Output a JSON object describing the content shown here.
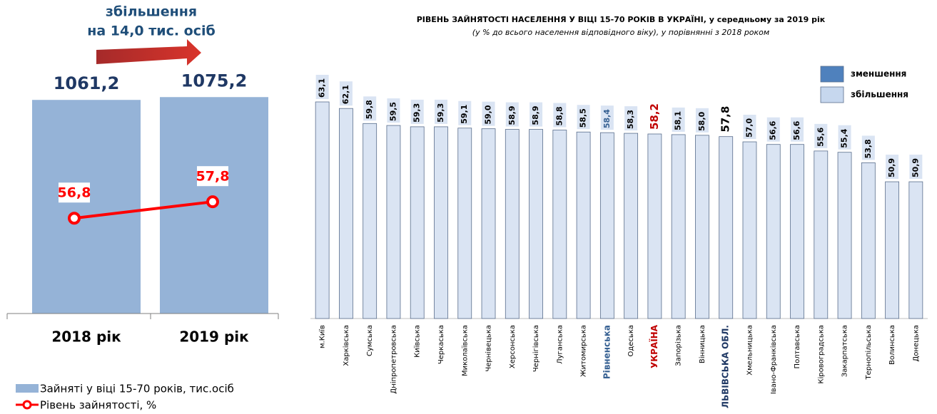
{
  "chart_data": [
    {
      "type": "bar_line",
      "annotation": [
        "збільшення",
        "на 14,0 тис. осіб"
      ],
      "categories": [
        "2018 рік",
        "2019 рік"
      ],
      "series": [
        {
          "name": "Зайняті у віці 15-70 років, тис.осіб",
          "color": "#95b3d7",
          "values": [
            1061.2,
            1075.2
          ],
          "value_labels": [
            "1061,2",
            "1075,2"
          ]
        },
        {
          "name": "Рівень зайнятості, %",
          "color": "#ff0000",
          "axis": "y2",
          "values": [
            56.8,
            57.8
          ],
          "value_labels": [
            "56,8",
            "57,8"
          ]
        }
      ],
      "ylim": [
        0,
        1200
      ],
      "y2lim": [
        51,
        65.7
      ]
    },
    {
      "type": "bar",
      "title": "РІВЕНЬ  ЗАЙНЯТОСТІ  НАСЕЛЕННЯ  У ВІЦІ 15-70 РОКІВ В УКРАЇНІ, у середньому за 2019 рік",
      "subtitle": "(у % до всього населення відповідного віку),  у порівнянні з 2018  роком",
      "categories": [
        "м.Київ",
        "Харківська",
        "Сумська",
        "Дніпропетровська",
        "Київська",
        "Черкаська",
        "Миколаївська",
        "Чернівецька",
        "Херсонська",
        "Чернігівська",
        "Луганська",
        "Житомирська",
        "Рівненська",
        "Одеська",
        "УКРАЇНА",
        "Запорізька",
        "Вінницька",
        "ЛЬВІВСЬКА ОБЛ.",
        "Хмельницька",
        "Івано-Франківська",
        "Полтавська",
        "Кіровоградська",
        "Закарпатська",
        "Тернопільська",
        "Волинська",
        "Донецька"
      ],
      "values": [
        63.1,
        62.1,
        59.8,
        59.5,
        59.3,
        59.3,
        59.1,
        59.0,
        58.9,
        58.9,
        58.8,
        58.5,
        58.4,
        58.3,
        58.2,
        58.1,
        58.0,
        57.8,
        57.0,
        56.6,
        56.6,
        55.6,
        55.4,
        53.8,
        50.9,
        50.9
      ],
      "value_labels": [
        "63,1",
        "62,1",
        "59,8",
        "59,5",
        "59,3",
        "59,3",
        "59,1",
        "59,0",
        "58,9",
        "58,9",
        "58,8",
        "58,5",
        "58,4",
        "58,3",
        "58,2",
        "58,1",
        "58,0",
        "57,8",
        "57,0",
        "56,6",
        "56,6",
        "55,6",
        "55,4",
        "53,8",
        "50,9",
        "50,9"
      ],
      "color": "#dae4f3",
      "highlight": {
        "12": "#366092",
        "14": "#c00000",
        "17": "#1f3864"
      },
      "legend": [
        {
          "name": "зменшення",
          "color": "#4f81bd"
        },
        {
          "name": "збільшення",
          "color": "#c6d7ee"
        }
      ],
      "ylim": [
        30,
        68
      ]
    }
  ]
}
